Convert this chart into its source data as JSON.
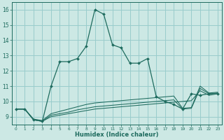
{
  "xlabel": "Humidex (Indice chaleur)",
  "background_color": "#cce8e4",
  "grid_color": "#99cccc",
  "line_color": "#1e6b5e",
  "xlim": [
    -0.5,
    23.5
  ],
  "ylim": [
    8.5,
    16.5
  ],
  "yticks": [
    9,
    10,
    11,
    12,
    13,
    14,
    15,
    16
  ],
  "xticks": [
    0,
    1,
    2,
    3,
    4,
    5,
    6,
    7,
    8,
    9,
    10,
    11,
    12,
    13,
    14,
    15,
    16,
    17,
    18,
    19,
    20,
    21,
    22,
    23
  ],
  "series_main": [
    9.5,
    9.5,
    8.8,
    8.7,
    11.0,
    12.6,
    12.6,
    12.8,
    13.6,
    16.0,
    15.7,
    13.7,
    13.5,
    12.5,
    12.5,
    12.8,
    10.3,
    10.0,
    9.8,
    9.5,
    10.5,
    10.4,
    10.5,
    10.5
  ],
  "series_flat1": [
    9.5,
    9.5,
    8.8,
    8.7,
    9.0,
    9.1,
    9.2,
    9.3,
    9.4,
    9.5,
    9.55,
    9.6,
    9.65,
    9.7,
    9.75,
    9.8,
    9.85,
    9.9,
    9.95,
    10.0,
    10.05,
    10.7,
    10.4,
    10.5
  ],
  "series_flat2": [
    9.5,
    9.5,
    8.8,
    8.7,
    9.1,
    9.2,
    9.3,
    9.45,
    9.55,
    9.65,
    9.7,
    9.75,
    9.8,
    9.85,
    9.9,
    9.95,
    10.0,
    10.05,
    10.1,
    9.5,
    9.55,
    10.85,
    10.5,
    10.55
  ],
  "series_flat3": [
    9.5,
    9.5,
    8.85,
    8.75,
    9.2,
    9.35,
    9.5,
    9.65,
    9.8,
    9.9,
    9.95,
    10.0,
    10.05,
    10.1,
    10.15,
    10.2,
    10.25,
    10.3,
    10.35,
    9.55,
    9.6,
    11.0,
    10.55,
    10.6
  ]
}
